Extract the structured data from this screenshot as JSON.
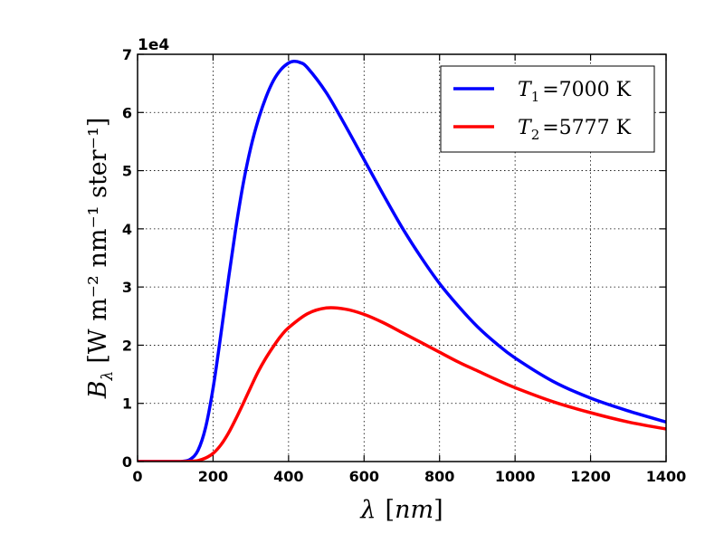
{
  "chart_data": {
    "type": "line",
    "title": "",
    "xlabel_symbol": "λ",
    "xlabel_unit": "nm",
    "ylabel_symbol": "B",
    "ylabel_subscript": "λ",
    "ylabel_units": "[W m⁻² nm⁻¹ ster⁻¹]",
    "xlim": [
      0,
      1400
    ],
    "ylim": [
      0,
      70000
    ],
    "y_offset_label": "1e4",
    "x_ticks": [
      0,
      200,
      400,
      600,
      800,
      1000,
      1200,
      1400
    ],
    "y_ticks": [
      0,
      1,
      2,
      3,
      4,
      5,
      6,
      7
    ],
    "grid": true,
    "grid_style": "dotted",
    "legend_position": "top-right",
    "series": [
      {
        "name_symbol": "T",
        "name_subscript": "1",
        "name_value": "=7000 K",
        "color": "#0000ff",
        "x": [
          100,
          120,
          140,
          160,
          180,
          200,
          220,
          240,
          260,
          280,
          300,
          320,
          340,
          360,
          380,
          400,
          414,
          430,
          450,
          500,
          550,
          600,
          650,
          700,
          750,
          800,
          850,
          900,
          950,
          1000,
          1100,
          1200,
          1300,
          1400
        ],
        "values": [
          0,
          50,
          400,
          1900,
          5800,
          12600,
          21500,
          31000,
          40000,
          47800,
          54000,
          58800,
          62600,
          65500,
          67400,
          68500,
          68800,
          68600,
          67700,
          63400,
          57800,
          51900,
          46000,
          40300,
          35200,
          30600,
          26700,
          23200,
          20300,
          17800,
          13800,
          10900,
          8700,
          6800
        ]
      },
      {
        "name_symbol": "T",
        "name_subscript": "2",
        "name_value": "=5777 K",
        "color": "#ff0000",
        "x": [
          100,
          120,
          140,
          160,
          180,
          200,
          220,
          240,
          260,
          280,
          300,
          320,
          340,
          360,
          380,
          400,
          450,
          500,
          550,
          600,
          650,
          700,
          750,
          800,
          850,
          900,
          950,
          1000,
          1100,
          1200,
          1300,
          1400
        ],
        "values": [
          0,
          0,
          50,
          170,
          600,
          1400,
          2800,
          4800,
          7300,
          10000,
          12800,
          15500,
          17800,
          19800,
          21600,
          23000,
          25400,
          26400,
          26200,
          25300,
          23900,
          22200,
          20500,
          18800,
          17100,
          15600,
          14100,
          12700,
          10300,
          8400,
          6800,
          5600
        ]
      }
    ]
  }
}
